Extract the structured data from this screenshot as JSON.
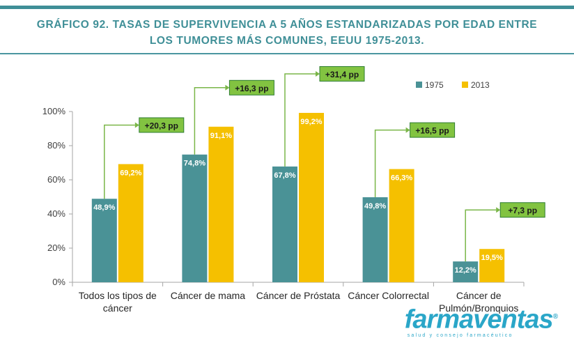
{
  "title_lines": [
    "GRÁFICO 92. TASAS DE SUPERVIVENCIA A 5 AÑOS ESTANDARIZADAS POR EDAD ENTRE",
    "LOS TUMORES MÁS COMUNES, EEUU 1975-2013."
  ],
  "watermark": {
    "brand": "farmaventas",
    "tagline": "salud y consejo farmacéutico",
    "registered": "®"
  },
  "colors": {
    "series_1975": "#4a9296",
    "series_2013": "#f5c000",
    "callout_fill": "#82c341",
    "callout_stroke": "#2e7d32",
    "connector": "#7ab648",
    "title": "#3f8f97"
  },
  "chart_data": {
    "type": "bar",
    "categories": [
      [
        "Todos los tipos de",
        "cáncer"
      ],
      [
        "Cáncer de mama"
      ],
      [
        "Cáncer de Próstata"
      ],
      [
        "Cáncer Colorrectal"
      ],
      [
        "Cáncer de",
        "Pulmón/Bronquios"
      ]
    ],
    "series": [
      {
        "name": "1975",
        "values": [
          48.9,
          74.8,
          67.8,
          49.8,
          12.2
        ],
        "labels": [
          "48,9%",
          "74,8%",
          "67,8%",
          "49,8%",
          "12,2%"
        ]
      },
      {
        "name": "2013",
        "values": [
          69.2,
          91.1,
          99.2,
          66.3,
          19.5
        ],
        "labels": [
          "69,2%",
          "91,1%",
          "99,2%",
          "66,3%",
          "19,5%"
        ]
      }
    ],
    "differences": [
      "+20,3 pp",
      "+16,3 pp",
      "+31,4 pp",
      "+16,5 pp",
      "+7,3 pp"
    ],
    "yticks": [
      "0%",
      "20%",
      "40%",
      "60%",
      "80%",
      "100%"
    ],
    "ylim": [
      0,
      100
    ],
    "legend_position": "top-right",
    "grid": false
  }
}
